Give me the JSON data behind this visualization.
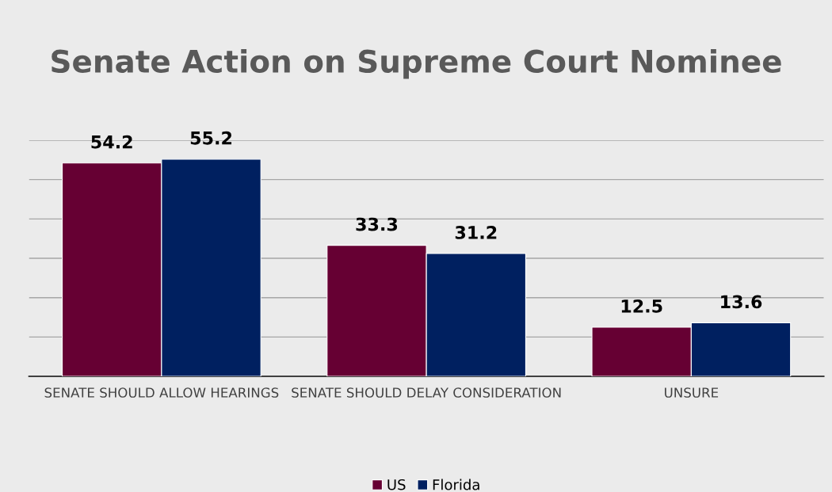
{
  "chart_data": {
    "type": "bar",
    "title": "Senate Action on Supreme Court Nominee",
    "categories": [
      "SENATE SHOULD ALLOW HEARINGS",
      "SENATE SHOULD DELAY CONSIDERATION",
      "UNSURE"
    ],
    "series": [
      {
        "name": "US",
        "color": "#660033",
        "values": [
          54.2,
          33.3,
          12.5
        ]
      },
      {
        "name": "Florida",
        "color": "#002060",
        "values": [
          55.2,
          31.2,
          13.6
        ]
      }
    ],
    "ylim": [
      0,
      60
    ],
    "yticks": [
      {
        "value": 0,
        "label": null
      },
      {
        "value": 10,
        "label": null
      },
      {
        "value": 20,
        "label": null
      },
      {
        "value": 30,
        "label": null
      },
      {
        "value": 40,
        "label": null
      },
      {
        "value": 50,
        "label": null
      },
      {
        "value": 60,
        "label": null
      }
    ],
    "tick_labels": "x",
    "grid": "y",
    "legend": "bottom",
    "data_labels": true
  }
}
